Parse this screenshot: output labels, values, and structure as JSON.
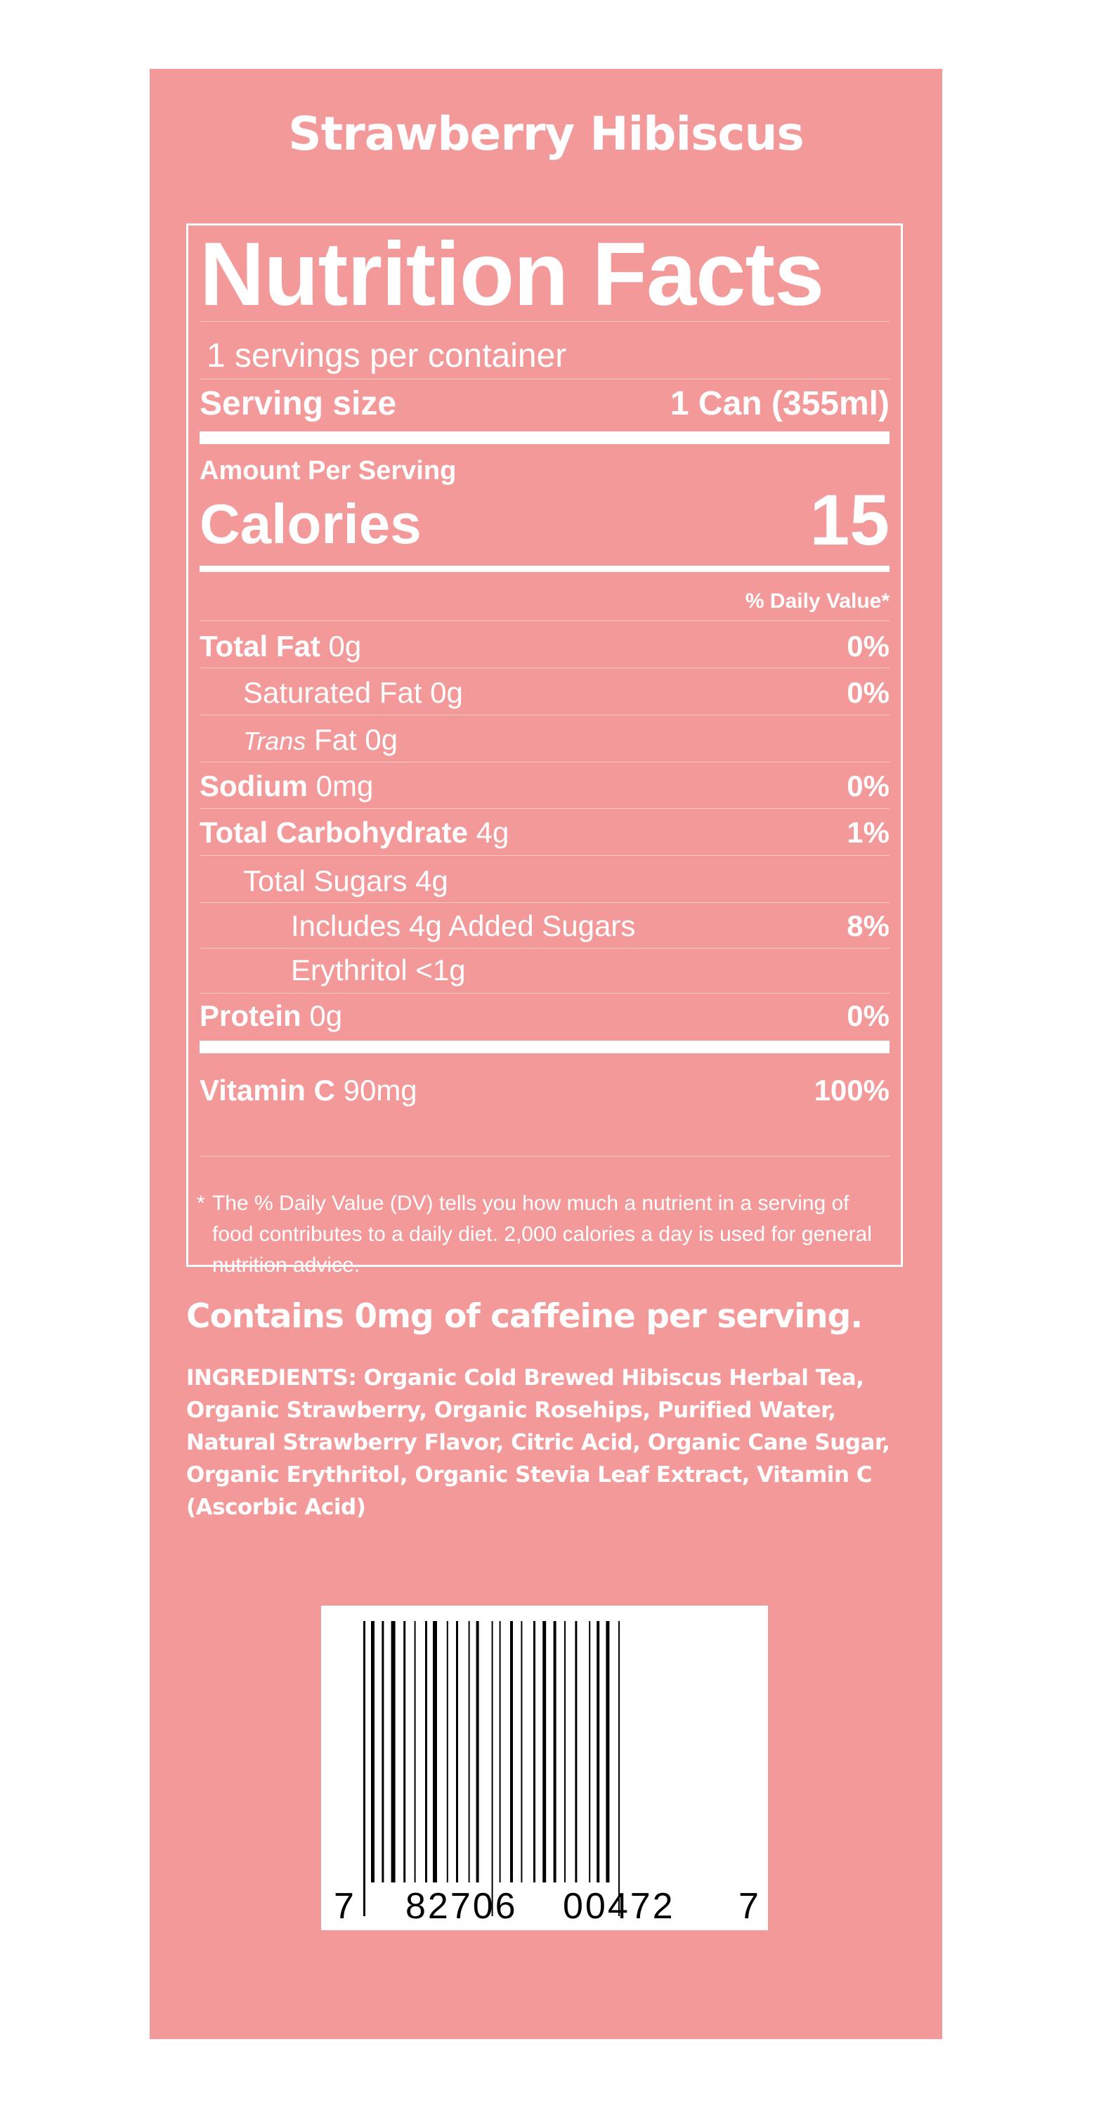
{
  "product_title": "Strawberry Hibiscus",
  "label": {
    "heading": "Nutrition Facts",
    "servings_per_container": "1 servings per container",
    "serving_size_label": "Serving size",
    "serving_size_value": "1 Can (355ml)",
    "amount_per_serving": "Amount Per Serving",
    "calories_label": "Calories",
    "calories_value": "15",
    "daily_value_header": "% Daily Value*",
    "rows": [
      {
        "bold": "Total Fat",
        "italic": "",
        "rest": " 0g",
        "pct": "0%"
      },
      {
        "bold": "",
        "italic": "",
        "rest": "Saturated Fat 0g",
        "pct": "0%"
      },
      {
        "bold": "",
        "italic": "Trans",
        "rest": " Fat 0g",
        "pct": ""
      },
      {
        "bold": "Sodium",
        "italic": "",
        "rest": " 0mg",
        "pct": "0%"
      },
      {
        "bold": "Total Carbohydrate",
        "italic": "",
        "rest": " 4g",
        "pct": "1%"
      },
      {
        "bold": "",
        "italic": "",
        "rest": "Total Sugars 4g",
        "pct": ""
      },
      {
        "bold": "",
        "italic": "",
        "rest": "Includes 4g Added Sugars",
        "pct": "8%"
      },
      {
        "bold": "",
        "italic": "",
        "rest": "Erythritol <1g",
        "pct": ""
      },
      {
        "bold": "Protein",
        "italic": "",
        "rest": " 0g",
        "pct": "0%"
      },
      {
        "bold": "Vitamin C",
        "italic": "",
        "rest": " 90mg",
        "pct": "100%"
      }
    ],
    "footnote_star": "*",
    "footnote": "The % Daily Value (DV) tells you how much a nutrient in a serving of food contributes to a daily diet. 2,000 calories a day is used for general nutrition advice."
  },
  "caffeine_note": "Contains 0mg of caffeine per serving.",
  "ingredients": "INGREDIENTS: Organic Cold Brewed Hibiscus Herbal Tea, Organic Strawberry, Organic Rosehips, Purified Water, Natural Strawberry Flavor, Citric Acid, Organic Cane Sugar, Organic Erythritol, Organic Stevia Leaf Extract, Vitamin C (Ascorbic Acid)",
  "barcode": {
    "digit_left": "7",
    "group_left": "82706",
    "group_right": "00472",
    "digit_right": "7"
  },
  "colors": {
    "panel": "#f4999a",
    "text": "#ffffff",
    "barcode_ink": "#000000"
  }
}
